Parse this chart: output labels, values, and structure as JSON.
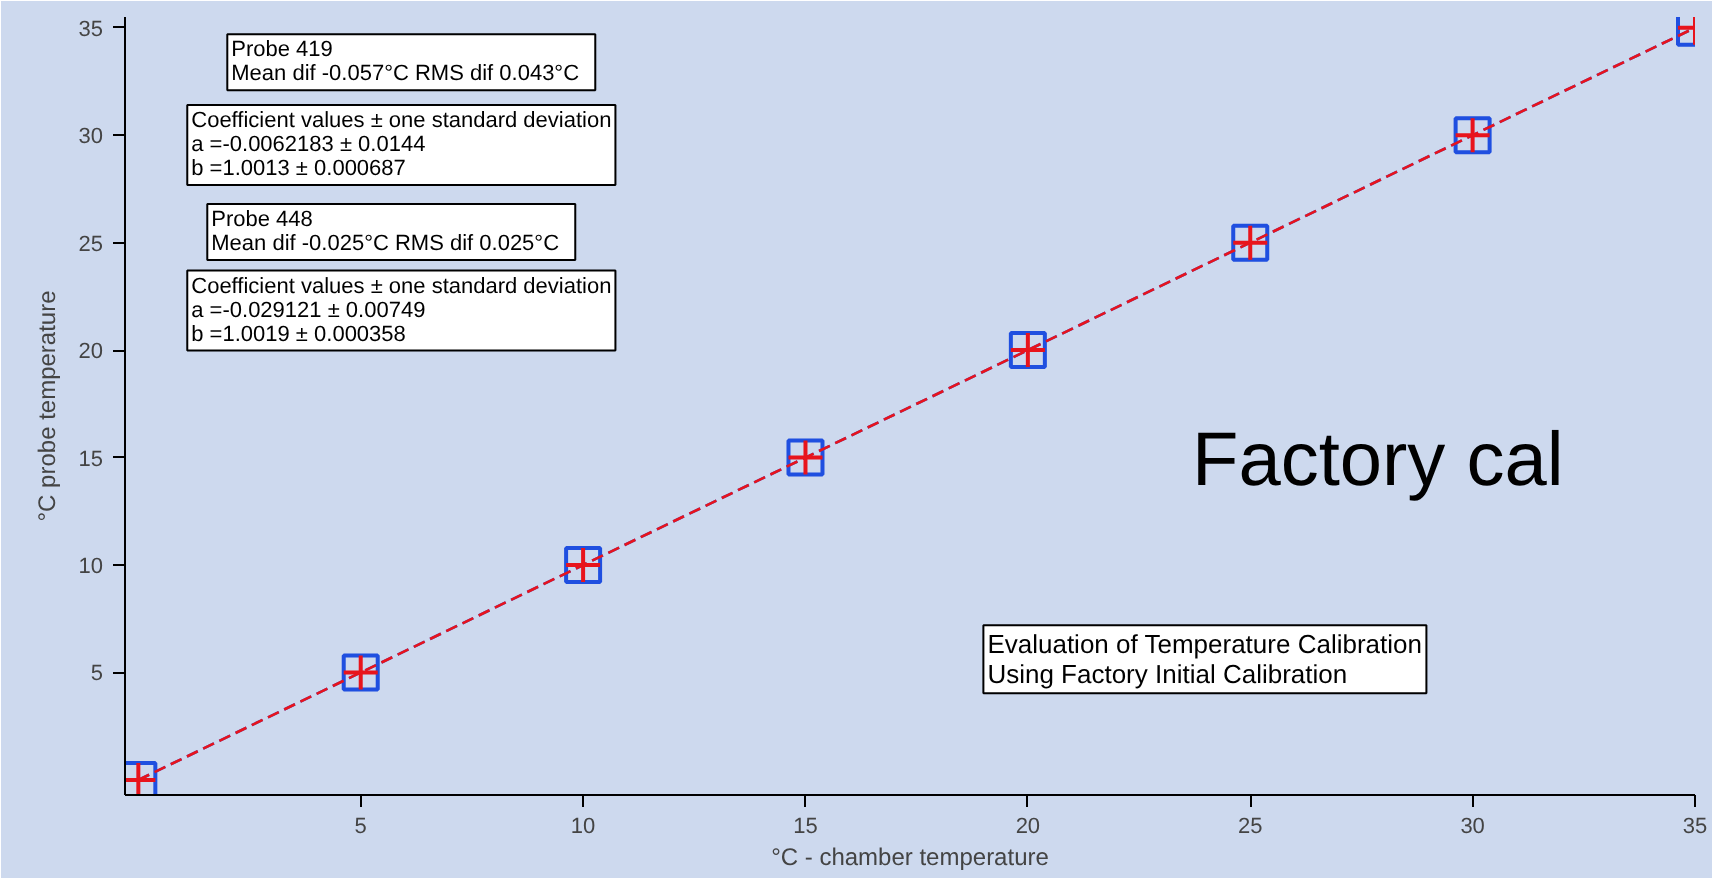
{
  "chart_data": {
    "type": "line",
    "xlabel": "°C - chamber temperature",
    "ylabel": "°C probe temperature",
    "x": [
      0,
      5,
      10,
      15,
      20,
      25,
      30,
      35
    ],
    "series": [
      {
        "color": "#1f4fe0",
        "marker": "square",
        "line_style": "dashed",
        "values": [
          0,
          5,
          10,
          15,
          20,
          25,
          30,
          35
        ]
      },
      {
        "color": "#e8141c",
        "marker": "cross",
        "line_style": "dashed",
        "values": [
          0,
          5,
          10,
          15,
          20,
          25,
          30,
          35
        ]
      }
    ],
    "xlim": [
      -0.3,
      35
    ],
    "ylim": [
      -0.7,
      35.5
    ],
    "xticks": [
      5,
      10,
      15,
      20,
      25,
      30,
      35
    ],
    "yticks": [
      5,
      10,
      15,
      20,
      25,
      30,
      35
    ],
    "grid": false,
    "annotations": [
      "Probe 419\n Mean dif -0.057°C  RMS dif 0.043°C",
      "Coefficient values ± one standard deviation\n       a        =-0.0062183 ± 0.0144\n       b        =1.0013 ± 0.000687",
      "Probe 448\n Mean dif -0.025°C  RMS dif 0.025°C",
      "Coefficient values ± one standard deviation\n       a        =-0.029121 ± 0.00749\n       b        =1.0019 ± 0.000358",
      "Factory cal",
      "Evaluation of Temperature Calibration\n  Using Factory Initial Calibration"
    ]
  }
}
